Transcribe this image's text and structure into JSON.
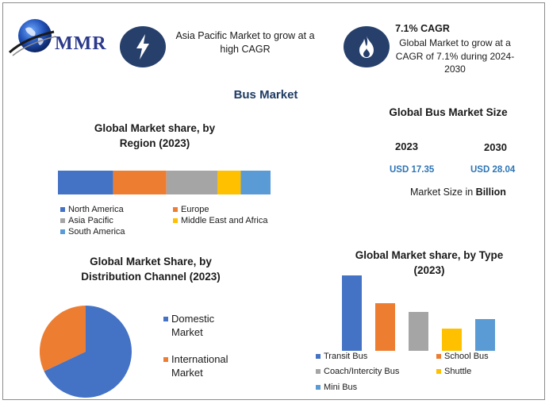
{
  "header": {
    "logo_text": "MMR",
    "highlight1": {
      "icon": "lightning-bolt-icon",
      "text": "Asia Pacific Market to grow at a high CAGR"
    },
    "highlight2": {
      "icon": "flame-icon",
      "title": "7.1% CAGR",
      "text": "Global Market to grow at a CAGR of 7.1% during 2024-2030"
    }
  },
  "main_title": "Bus Market",
  "market_size": {
    "title": "Global Bus Market Size",
    "year1": "2023",
    "year2": "2030",
    "value1": "USD 17.35",
    "value2": "USD 28.04",
    "note_prefix": "Market Size in ",
    "note_bold": "Billion"
  },
  "colors": {
    "blue": "#4472c4",
    "orange": "#ed7d31",
    "gray": "#a5a5a5",
    "yellow": "#ffc000",
    "lightblue": "#5b9bd5"
  },
  "chart_data": [
    {
      "type": "bar",
      "orientation": "horizontal-stacked",
      "title": "Global Market share, by Region (2023)",
      "series": [
        {
          "name": "North America",
          "value": 26,
          "color": "#4472c4"
        },
        {
          "name": "Europe",
          "value": 25,
          "color": "#ed7d31"
        },
        {
          "name": "Asia Pacific",
          "value": 24,
          "color": "#a5a5a5"
        },
        {
          "name": "Middle East and Africa",
          "value": 11,
          "color": "#ffc000"
        },
        {
          "name": "South America",
          "value": 14,
          "color": "#5b9bd5"
        }
      ]
    },
    {
      "type": "pie",
      "title": "Global Market Share, by Distribution Channel (2023)",
      "slices": [
        {
          "name": "Domestic Market",
          "value": 68,
          "color": "#4472c4"
        },
        {
          "name": "International Market",
          "value": 32,
          "color": "#ed7d31"
        }
      ]
    },
    {
      "type": "bar",
      "title": "Global Market share, by Type (2023)",
      "categories": [
        "Transit Bus",
        "School Bus",
        "Coach/Intercity Bus",
        "Shuttle",
        "Mini Bus"
      ],
      "values": [
        95,
        60,
        49,
        28,
        40
      ],
      "colors": [
        "#4472c4",
        "#ed7d31",
        "#a5a5a5",
        "#ffc000",
        "#5b9bd5"
      ],
      "ylim": [
        0,
        100
      ]
    }
  ]
}
